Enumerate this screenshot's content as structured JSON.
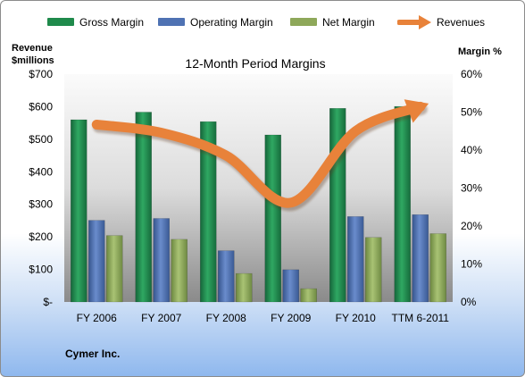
{
  "legend": {
    "gross": "Gross Margin",
    "operating": "Operating Margin",
    "net": "Net Margin",
    "revenues": "Revenues"
  },
  "axis_titles": {
    "left": "Revenue\n$millions",
    "right": "Margin %"
  },
  "footer": {
    "company": "Cymer Inc."
  },
  "colors": {
    "gross": "#1f8a4b",
    "operating": "#4f72b3",
    "net": "#8ea85a",
    "revenues": "#e8823a"
  },
  "chart_data": {
    "type": "bar",
    "title": "12-Month Period Margins",
    "categories": [
      "FY 2006",
      "FY 2007",
      "FY 2008",
      "FY 2009",
      "FY 2010",
      "TTM 6-2011"
    ],
    "series": [
      {
        "name": "Gross Margin",
        "values": [
          48,
          50,
          47.5,
          44,
          51,
          51.5
        ]
      },
      {
        "name": "Operating Margin",
        "values": [
          21.5,
          22,
          13.5,
          8.5,
          22.5,
          23
        ]
      },
      {
        "name": "Net Margin",
        "values": [
          17.5,
          16.5,
          7.5,
          3.5,
          17,
          18
        ]
      },
      {
        "name": "Revenues",
        "type": "line",
        "values": [
          545,
          520,
          450,
          305,
          525,
          600
        ]
      }
    ],
    "y_left": {
      "label": "Revenue $millions",
      "range": [
        0,
        700
      ],
      "ticks": [
        "$-",
        "$100",
        "$200",
        "$300",
        "$400",
        "$500",
        "$600",
        "$700"
      ]
    },
    "y_right": {
      "label": "Margin %",
      "range": [
        0,
        60
      ],
      "ticks": [
        "0%",
        "10%",
        "20%",
        "30%",
        "40%",
        "50%",
        "60%"
      ]
    },
    "grid": false,
    "legend_position": "top"
  }
}
